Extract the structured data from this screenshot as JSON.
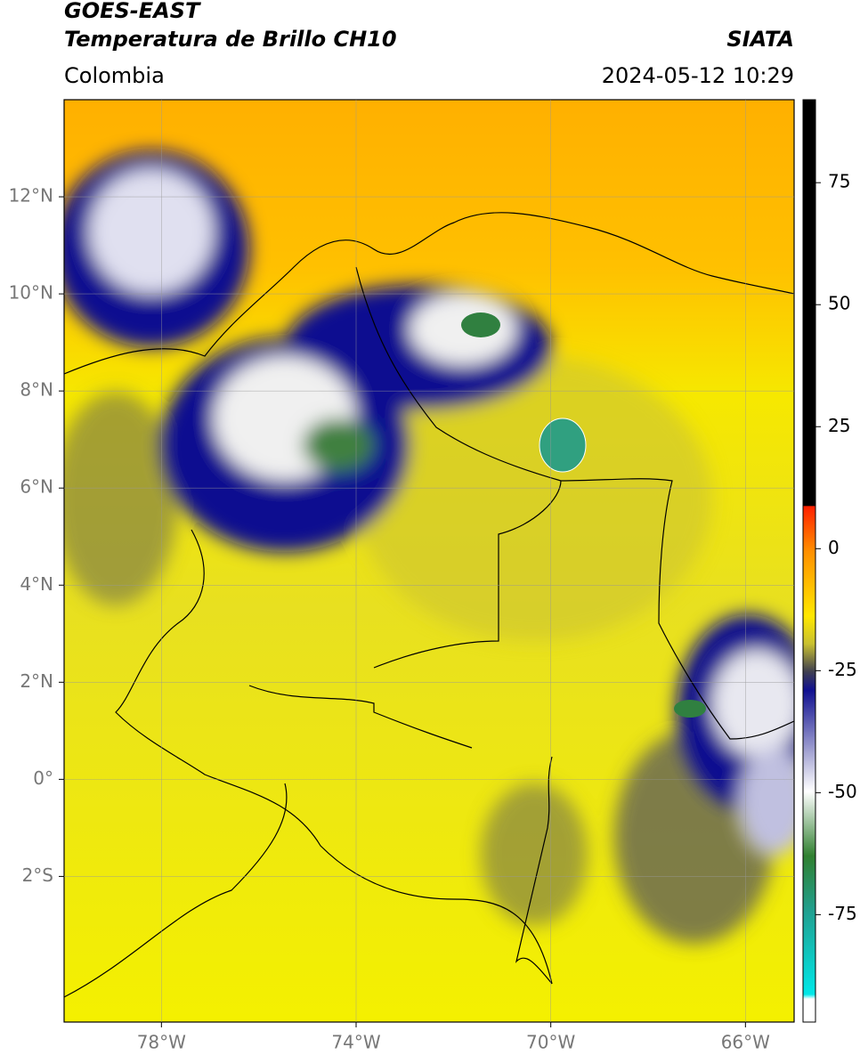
{
  "header": {
    "title": "GOES-EAST",
    "subtitle": "Temperatura de Brillo CH10",
    "source": "SIATA",
    "region": "Colombia",
    "datetime": "2024-05-12 10:29"
  },
  "map": {
    "lonlim": [
      -80,
      -65
    ],
    "latlim": [
      -5,
      14
    ],
    "xticks": [
      {
        "value": -78,
        "label": "78°W"
      },
      {
        "value": -74,
        "label": "74°W"
      },
      {
        "value": -70,
        "label": "70°W"
      },
      {
        "value": -66,
        "label": "66°W"
      }
    ],
    "yticks": [
      {
        "value": 12,
        "label": "12°N"
      },
      {
        "value": 10,
        "label": "10°N"
      },
      {
        "value": 8,
        "label": "8°N"
      },
      {
        "value": 6,
        "label": "6°N"
      },
      {
        "value": 4,
        "label": "4°N"
      },
      {
        "value": 2,
        "label": "2°N"
      },
      {
        "value": 0,
        "label": "0°"
      },
      {
        "value": -2,
        "label": "2°S"
      }
    ],
    "grid": true
  },
  "colorbar": {
    "lim": [
      -97,
      92
    ],
    "ticks": [
      75,
      50,
      25,
      0,
      -25,
      -50,
      -75
    ]
  }
}
